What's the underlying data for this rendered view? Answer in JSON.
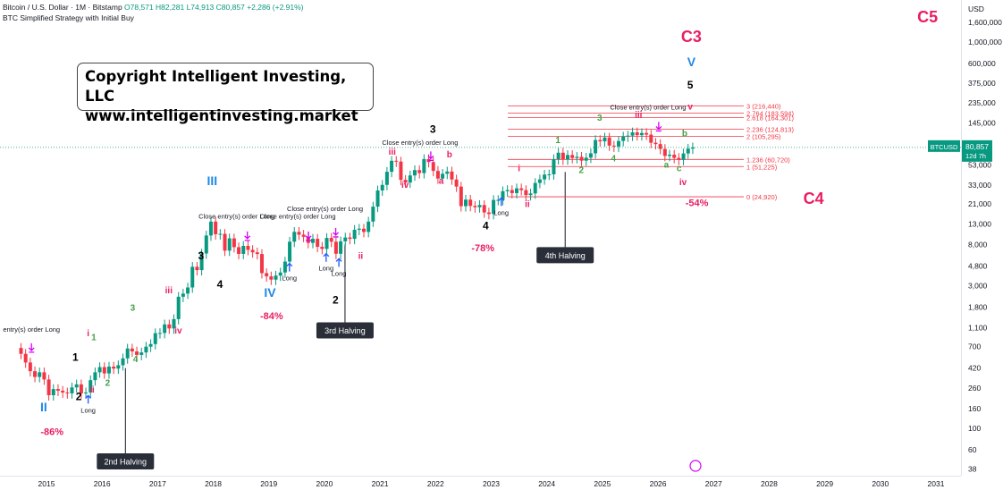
{
  "header": {
    "symbol": "Bitcoin / U.S. Dollar · 1M · Bitstamp",
    "open": "O78,571",
    "high": "H82,281",
    "low": "L74,913",
    "close": "C80,857",
    "change": "+2,286 (+2.91%)",
    "strategy": "BTC Simplified Strategy with Initial Buy"
  },
  "copyright": {
    "line1": "Copyright Intelligent Investing, LLC",
    "line2": "www.intelligentinvesting.market"
  },
  "price_axis": {
    "currency": "USD",
    "ticks": [
      {
        "label": "1,600,000",
        "value": 1600000
      },
      {
        "label": "1,000,000",
        "value": 1000000
      },
      {
        "label": "600,000",
        "value": 600000
      },
      {
        "label": "375,000",
        "value": 375000
      },
      {
        "label": "235,000",
        "value": 235000
      },
      {
        "label": "145,000",
        "value": 145000
      },
      {
        "label": "53,000",
        "value": 53000
      },
      {
        "label": "33,000",
        "value": 33000
      },
      {
        "label": "21,000",
        "value": 21000
      },
      {
        "label": "13,000",
        "value": 13000
      },
      {
        "label": "8,000",
        "value": 8000
      },
      {
        "label": "4,800",
        "value": 4800
      },
      {
        "label": "3,000",
        "value": 3000
      },
      {
        "label": "1,800",
        "value": 1800
      },
      {
        "label": "1,100",
        "value": 1100
      },
      {
        "label": "700",
        "value": 700
      },
      {
        "label": "420",
        "value": 420
      },
      {
        "label": "260",
        "value": 260
      },
      {
        "label": "160",
        "value": 160
      },
      {
        "label": "100",
        "value": 100
      },
      {
        "label": "60",
        "value": 60
      },
      {
        "label": "38",
        "value": 38
      }
    ],
    "last_price_tag": {
      "symbol": "BTCUSD",
      "price": "80,857",
      "countdown": "12d 7h"
    }
  },
  "time_axis": [
    "2015",
    "2016",
    "2017",
    "2018",
    "2019",
    "2020",
    "2021",
    "2022",
    "2023",
    "2024",
    "2025",
    "2026",
    "2027",
    "2028",
    "2029",
    "2030",
    "2031"
  ],
  "chart_data": {
    "type": "candlestick",
    "scale": "log",
    "interval": "1M",
    "ylim": [
      38,
      1600000
    ],
    "xlim": [
      2014.6,
      2031.1
    ],
    "x_ticks": [
      2015,
      2016,
      2017,
      2018,
      2019,
      2020,
      2021,
      2022,
      2023,
      2024,
      2025,
      2026,
      2027,
      2028,
      2029,
      2030,
      2031
    ],
    "approx_monthly_close": [
      [
        "2014-07",
        590
      ],
      [
        "2014-08",
        480
      ],
      [
        "2014-09",
        390
      ],
      [
        "2014-10",
        340
      ],
      [
        "2014-11",
        380
      ],
      [
        "2014-12",
        320
      ],
      [
        "2015-01",
        220
      ],
      [
        "2015-02",
        255
      ],
      [
        "2015-03",
        245
      ],
      [
        "2015-04",
        235
      ],
      [
        "2015-05",
        230
      ],
      [
        "2015-06",
        265
      ],
      [
        "2015-07",
        285
      ],
      [
        "2015-08",
        230
      ],
      [
        "2015-09",
        235
      ],
      [
        "2015-10",
        315
      ],
      [
        "2015-11",
        380
      ],
      [
        "2015-12",
        430
      ],
      [
        "2016-01",
        370
      ],
      [
        "2016-02",
        435
      ],
      [
        "2016-03",
        415
      ],
      [
        "2016-04",
        450
      ],
      [
        "2016-05",
        530
      ],
      [
        "2016-06",
        670
      ],
      [
        "2016-07",
        625
      ],
      [
        "2016-08",
        575
      ],
      [
        "2016-09",
        610
      ],
      [
        "2016-10",
        700
      ],
      [
        "2016-11",
        745
      ],
      [
        "2016-12",
        965
      ],
      [
        "2017-01",
        970
      ],
      [
        "2017-02",
        1190
      ],
      [
        "2017-03",
        1080
      ],
      [
        "2017-04",
        1350
      ],
      [
        "2017-05",
        2300
      ],
      [
        "2017-06",
        2480
      ],
      [
        "2017-07",
        2870
      ],
      [
        "2017-08",
        4700
      ],
      [
        "2017-09",
        4340
      ],
      [
        "2017-10",
        6450
      ],
      [
        "2017-11",
        9900
      ],
      [
        "2017-12",
        13800
      ],
      [
        "2018-01",
        10200
      ],
      [
        "2018-02",
        10300
      ],
      [
        "2018-03",
        6900
      ],
      [
        "2018-04",
        9250
      ],
      [
        "2018-05",
        7500
      ],
      [
        "2018-06",
        6390
      ],
      [
        "2018-07",
        7730
      ],
      [
        "2018-08",
        7030
      ],
      [
        "2018-09",
        6630
      ],
      [
        "2018-10",
        6370
      ],
      [
        "2018-11",
        4040
      ],
      [
        "2018-12",
        3740
      ],
      [
        "2019-01",
        3460
      ],
      [
        "2019-02",
        3810
      ],
      [
        "2019-03",
        4100
      ],
      [
        "2019-04",
        5320
      ],
      [
        "2019-05",
        8550
      ],
      [
        "2019-06",
        10800
      ],
      [
        "2019-07",
        10100
      ],
      [
        "2019-08",
        9600
      ],
      [
        "2019-09",
        8300
      ],
      [
        "2019-10",
        9150
      ],
      [
        "2019-11",
        7560
      ],
      [
        "2019-12",
        7200
      ],
      [
        "2020-01",
        9350
      ],
      [
        "2020-02",
        8540
      ],
      [
        "2020-03",
        6410
      ],
      [
        "2020-04",
        8620
      ],
      [
        "2020-05",
        9450
      ],
      [
        "2020-06",
        9140
      ],
      [
        "2020-07",
        11350
      ],
      [
        "2020-08",
        11650
      ],
      [
        "2020-09",
        10780
      ],
      [
        "2020-10",
        13800
      ],
      [
        "2020-11",
        19700
      ],
      [
        "2020-12",
        28990
      ],
      [
        "2021-01",
        33110
      ],
      [
        "2021-02",
        45240
      ],
      [
        "2021-03",
        58800
      ],
      [
        "2021-04",
        57700
      ],
      [
        "2021-05",
        37300
      ],
      [
        "2021-06",
        35040
      ],
      [
        "2021-07",
        41460
      ],
      [
        "2021-08",
        47100
      ],
      [
        "2021-09",
        43820
      ],
      [
        "2021-10",
        61300
      ],
      [
        "2021-11",
        57000
      ],
      [
        "2021-12",
        46210
      ],
      [
        "2022-01",
        38480
      ],
      [
        "2022-02",
        43160
      ],
      [
        "2022-03",
        45510
      ],
      [
        "2022-04",
        37640
      ],
      [
        "2022-05",
        31790
      ],
      [
        "2022-06",
        19930
      ],
      [
        "2022-07",
        23300
      ],
      [
        "2022-08",
        20050
      ],
      [
        "2022-09",
        19420
      ],
      [
        "2022-10",
        20490
      ],
      [
        "2022-11",
        17160
      ],
      [
        "2022-12",
        16540
      ],
      [
        "2023-01",
        23120
      ],
      [
        "2023-02",
        23130
      ],
      [
        "2023-03",
        28460
      ],
      [
        "2023-04",
        29250
      ],
      [
        "2023-05",
        27210
      ],
      [
        "2023-06",
        30470
      ],
      [
        "2023-07",
        29230
      ],
      [
        "2023-08",
        25940
      ],
      [
        "2023-09",
        26970
      ],
      [
        "2023-10",
        34650
      ],
      [
        "2023-11",
        37720
      ],
      [
        "2023-12",
        42270
      ],
      [
        "2024-01",
        42580
      ],
      [
        "2024-02",
        61130
      ],
      [
        "2024-03",
        71290
      ],
      [
        "2024-04",
        60640
      ],
      [
        "2024-05",
        67490
      ],
      [
        "2024-06",
        62760
      ],
      [
        "2024-07",
        64610
      ],
      [
        "2024-08",
        58970
      ],
      [
        "2024-09",
        63330
      ],
      [
        "2024-10",
        70220
      ],
      [
        "2024-11",
        96410
      ],
      [
        "2024-12",
        93430
      ],
      [
        "2025-01",
        102410
      ],
      [
        "2025-02",
        84350
      ],
      [
        "2025-03",
        82550
      ],
      [
        "2025-04",
        94210
      ],
      [
        "2025-05",
        104640
      ],
      [
        "2025-06",
        107140
      ],
      [
        "2025-07",
        115760
      ],
      [
        "2025-08",
        108250
      ],
      [
        "2025-09",
        114050
      ],
      [
        "2025-10",
        109610
      ],
      [
        "2025-11",
        90360
      ],
      [
        "2025-12",
        87500
      ],
      [
        "2026-01",
        78000
      ],
      [
        "2026-02",
        66000
      ],
      [
        "2026-03",
        68000
      ],
      [
        "2026-04",
        63000
      ],
      [
        "2026-05",
        60000
      ],
      [
        "2026-06",
        70000
      ],
      [
        "2026-07",
        78571
      ],
      [
        "2026-08",
        80857
      ]
    ],
    "fib_levels": [
      {
        "label": "3 (216,440)",
        "value": 216440
      },
      {
        "label": "2.764 (183,594)",
        "value": 183594
      },
      {
        "label": "2.618 (164,301)",
        "value": 164301
      },
      {
        "label": "2.236 (124,813)",
        "value": 124813
      },
      {
        "label": "2 (105,295)",
        "value": 105295
      },
      {
        "label": "1.236 (60,720)",
        "value": 60720
      },
      {
        "label": "1 (51,225)",
        "value": 51225
      },
      {
        "label": "0 (24,920)",
        "value": 24920
      }
    ],
    "colors": {
      "up": "#089981",
      "down": "#f23645",
      "fib": "#f23645",
      "wave_red": "#e91e63",
      "wave_green": "#43a047",
      "wave_blue": "#1e88e5",
      "wave_black": "#000000",
      "signal": "#d500f9",
      "long": "#2962ff"
    },
    "wave_labels": [
      {
        "text": "II",
        "x": 2014.95,
        "y": 150,
        "color": "blue",
        "size": 14
      },
      {
        "text": "1",
        "x": 2015.52,
        "y": 500,
        "color": "black",
        "size": 12
      },
      {
        "text": "2",
        "x": 2015.58,
        "y": 195,
        "color": "black",
        "size": 12
      },
      {
        "text": "i",
        "x": 2015.75,
        "y": 900,
        "color": "red",
        "size": 10
      },
      {
        "text": "1",
        "x": 2015.85,
        "y": 820,
        "color": "green",
        "size": 10
      },
      {
        "text": "ii",
        "x": 2015.82,
        "y": 235,
        "color": "red",
        "size": 10
      },
      {
        "text": "2",
        "x": 2016.1,
        "y": 275,
        "color": "green",
        "size": 10
      },
      {
        "text": "3",
        "x": 2016.55,
        "y": 1650,
        "color": "green",
        "size": 10
      },
      {
        "text": "4",
        "x": 2016.6,
        "y": 485,
        "color": "green",
        "size": 10
      },
      {
        "text": "iii",
        "x": 2017.2,
        "y": 2500,
        "color": "red",
        "size": 10
      },
      {
        "text": "iv",
        "x": 2017.37,
        "y": 960,
        "color": "red",
        "size": 10
      },
      {
        "text": "3",
        "x": 2017.78,
        "y": 5600,
        "color": "black",
        "size": 12
      },
      {
        "text": "4",
        "x": 2018.12,
        "y": 2850,
        "color": "black",
        "size": 12
      },
      {
        "text": "III",
        "x": 2017.98,
        "y": 33000,
        "color": "blue",
        "size": 14
      },
      {
        "text": "IV",
        "x": 2019.02,
        "y": 2300,
        "color": "blue",
        "size": 14
      },
      {
        "text": "2",
        "x": 2020.2,
        "y": 1950,
        "color": "black",
        "size": 12
      },
      {
        "text": "iii",
        "x": 2021.22,
        "y": 68000,
        "color": "red",
        "size": 10
      },
      {
        "text": "iv",
        "x": 2021.45,
        "y": 31000,
        "color": "red",
        "size": 10
      },
      {
        "text": "3",
        "x": 2021.95,
        "y": 115000,
        "color": "black",
        "size": 12
      },
      {
        "text": "b",
        "x": 2022.25,
        "y": 64000,
        "color": "red",
        "size": 10
      },
      {
        "text": "a",
        "x": 2022.1,
        "y": 34000,
        "color": "red",
        "size": 10
      },
      {
        "text": "ii",
        "x": 2020.65,
        "y": 5700,
        "color": "red",
        "size": 10
      },
      {
        "text": "4",
        "x": 2022.9,
        "y": 11500,
        "color": "black",
        "size": 12
      },
      {
        "text": "i",
        "x": 2023.5,
        "y": 46000,
        "color": "red",
        "size": 10
      },
      {
        "text": "ii",
        "x": 2023.65,
        "y": 19500,
        "color": "red",
        "size": 10
      },
      {
        "text": "1",
        "x": 2024.2,
        "y": 90000,
        "color": "green",
        "size": 10
      },
      {
        "text": "2",
        "x": 2024.62,
        "y": 44000,
        "color": "green",
        "size": 10
      },
      {
        "text": "3",
        "x": 2024.95,
        "y": 152000,
        "color": "green",
        "size": 10
      },
      {
        "text": "4",
        "x": 2025.2,
        "y": 58000,
        "color": "green",
        "size": 10
      },
      {
        "text": "iii",
        "x": 2025.65,
        "y": 165000,
        "color": "red",
        "size": 10
      },
      {
        "text": "b",
        "x": 2026.48,
        "y": 105000,
        "color": "green",
        "size": 10
      },
      {
        "text": "a",
        "x": 2026.15,
        "y": 50000,
        "color": "green",
        "size": 10
      },
      {
        "text": "c",
        "x": 2026.38,
        "y": 46000,
        "color": "green",
        "size": 10
      },
      {
        "text": "iv",
        "x": 2026.45,
        "y": 33000,
        "color": "red",
        "size": 10
      },
      {
        "text": "v",
        "x": 2026.58,
        "y": 200000,
        "color": "red",
        "size": 10
      },
      {
        "text": "5",
        "x": 2026.58,
        "y": 330000,
        "color": "black",
        "size": 12
      },
      {
        "text": "V",
        "x": 2026.6,
        "y": 560000,
        "color": "blue",
        "size": 14
      },
      {
        "text": "C3",
        "x": 2026.6,
        "y": 1000000,
        "color": "red",
        "size": 18
      },
      {
        "text": "C4",
        "x": 2028.8,
        "y": 21000,
        "color": "red",
        "size": 18
      },
      {
        "text": "C5",
        "x": 2030.85,
        "y": 1600000,
        "color": "red",
        "size": 18
      }
    ],
    "pct_labels": [
      {
        "text": "-86%",
        "x": 2015.1,
        "y": 85
      },
      {
        "text": "-84%",
        "x": 2019.05,
        "y": 1350
      },
      {
        "text": "-78%",
        "x": 2022.85,
        "y": 6800
      },
      {
        "text": "-54%",
        "x": 2026.7,
        "y": 20000
      }
    ],
    "signal_labels": [
      {
        "text": "entry(s) order Long",
        "x": 2014.73,
        "y": 1000,
        "arrow_y": 640
      },
      {
        "text": "Close entry(s) order Long",
        "x": 2018.42,
        "y": 14800,
        "arrow_y": 9200
      },
      {
        "text": "Close entry(s) order Long",
        "x": 2019.52,
        "y": 14800,
        "arrow_y": 9200
      },
      {
        "text": "Close entry(s) order Long",
        "x": 2020.01,
        "y": 17800,
        "arrow_y": 10000
      },
      {
        "text": "Close entry(s) order Long",
        "x": 2021.72,
        "y": 86000,
        "arrow_y": 62000
      },
      {
        "text": "Close entry(s) order Long",
        "x": 2025.82,
        "y": 200000,
        "arrow_y": 125000
      }
    ],
    "long_markers": [
      {
        "x": 2015.75,
        "y": 180
      },
      {
        "x": 2019.37,
        "y": 4200
      },
      {
        "x": 2020.03,
        "y": 5300
      },
      {
        "x": 2020.26,
        "y": 4700
      },
      {
        "x": 2023.18,
        "y": 20000
      }
    ],
    "halvings": [
      {
        "text": "2nd Halving",
        "x": 2016.42,
        "top": 420,
        "box": 55
      },
      {
        "text": "3rd Halving",
        "x": 2020.37,
        "top": 8000,
        "box": 1250
      },
      {
        "text": "4th Halving",
        "x": 2024.33,
        "top": 45000,
        "box": 7500
      }
    ]
  }
}
